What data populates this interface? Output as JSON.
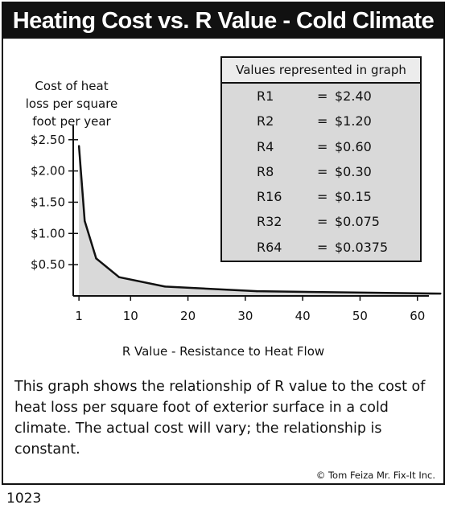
{
  "title": "Heating Cost vs. R Value - Cold Climate",
  "figure_number": "1023",
  "credit": "© Tom Feiza Mr. Fix-It Inc.",
  "description": "This graph shows the relationship of R value to the cost of heat loss per square foot of exterior surface in a cold climate.  The actual cost will vary; the relationship is constant.",
  "legend_box": {
    "heading": "Values represented in graph",
    "rows": [
      {
        "r": "R1",
        "eq": "=",
        "v": "$2.40"
      },
      {
        "r": "R2",
        "eq": "=",
        "v": "$1.20"
      },
      {
        "r": "R4",
        "eq": "=",
        "v": "$0.60"
      },
      {
        "r": "R8",
        "eq": "=",
        "v": "$0.30"
      },
      {
        "r": "R16",
        "eq": "=",
        "v": "$0.15"
      },
      {
        "r": "R32",
        "eq": "=",
        "v": "$0.075"
      },
      {
        "r": "R64",
        "eq": "=",
        "v": "$0.0375"
      }
    ]
  },
  "chart_data": {
    "type": "area",
    "title": "Heating Cost vs. R Value - Cold Climate",
    "xlabel": "R Value - Resistance to Heat Flow",
    "ylabel_lines": [
      "Cost of heat",
      "loss per square",
      "foot per year"
    ],
    "x": [
      1,
      2,
      4,
      8,
      16,
      32,
      64
    ],
    "y": [
      2.4,
      1.2,
      0.6,
      0.3,
      0.15,
      0.075,
      0.0375
    ],
    "xticks": [
      1,
      10,
      20,
      30,
      40,
      50,
      60
    ],
    "yticks": [
      0.5,
      1.0,
      1.5,
      2.0,
      2.5
    ],
    "ytick_labels": [
      "$0.50",
      "$1.00",
      "$1.50",
      "$2.00",
      "$2.50"
    ],
    "xlim": [
      0,
      62
    ],
    "ylim": [
      0,
      2.6
    ],
    "grid": false,
    "fill_color": "#d9d9d9",
    "line_color": "#111111"
  }
}
